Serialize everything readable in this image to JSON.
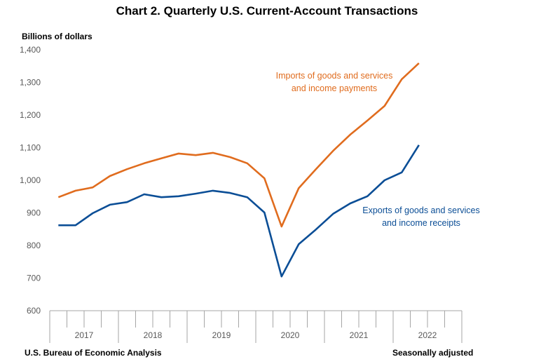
{
  "chart_data": {
    "type": "line",
    "title": "Chart 2. Quarterly U.S. Current-Account Transactions",
    "ylabel": "Billions of dollars",
    "xlabel": "",
    "ylim": [
      600,
      1400
    ],
    "yticks": [
      600,
      700,
      800,
      900,
      1000,
      1100,
      1200,
      1300,
      1400
    ],
    "ytick_labels": [
      "600",
      "700",
      "800",
      "900",
      "1,000",
      "1,100",
      "1,200",
      "1,300",
      "1,400"
    ],
    "x_groups": [
      "2017",
      "2018",
      "2019",
      "2020",
      "2021",
      "2022"
    ],
    "quarters_per_group": 4,
    "x": [
      "2017 Q1",
      "2017 Q2",
      "2017 Q3",
      "2017 Q4",
      "2018 Q1",
      "2018 Q2",
      "2018 Q3",
      "2018 Q4",
      "2019 Q1",
      "2019 Q2",
      "2019 Q3",
      "2019 Q4",
      "2020 Q1",
      "2020 Q2",
      "2020 Q3",
      "2020 Q4",
      "2021 Q1",
      "2021 Q2",
      "2021 Q3",
      "2021 Q4",
      "2022 Q1",
      "2022 Q2"
    ],
    "grid": false,
    "series": [
      {
        "name": "Imports of goods and services and income payments",
        "label_lines": [
          "Imports of goods and services",
          "and income payments"
        ],
        "color": "#E06C1E",
        "values": [
          948,
          968,
          978,
          1013,
          1034,
          1052,
          1067,
          1082,
          1077,
          1084,
          1071,
          1052,
          1006,
          858,
          976,
          1034,
          1090,
          1140,
          1183,
          1228,
          1310,
          1359
        ]
      },
      {
        "name": "Exports of goods and services and income receipts",
        "label_lines": [
          "Exports of goods and services",
          "and income receipts"
        ],
        "color": "#0B4E96",
        "values": [
          862,
          862,
          899,
          925,
          933,
          957,
          948,
          951,
          959,
          968,
          961,
          948,
          901,
          705,
          804,
          849,
          897,
          929,
          951,
          1000,
          1024,
          1108
        ]
      }
    ]
  },
  "footer": {
    "source": "U.S. Bureau of Economic Analysis",
    "note": "Seasonally adjusted"
  }
}
